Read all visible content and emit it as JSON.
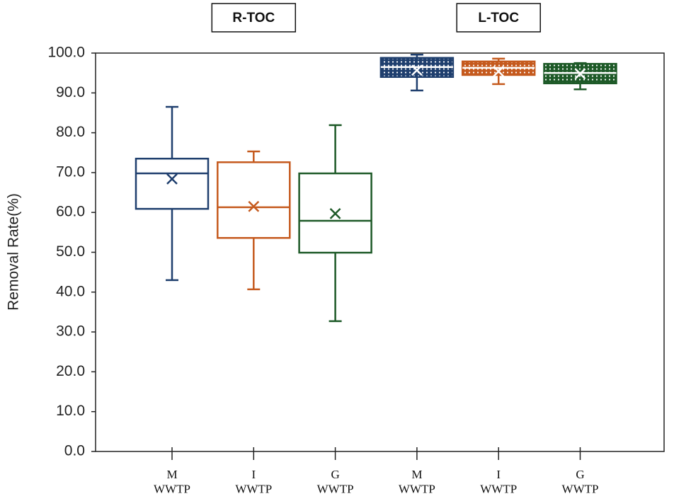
{
  "chart_data": {
    "type": "box",
    "ylabel": "Removal Rate(%)",
    "groups": [
      "R-TOC",
      "L-TOC"
    ],
    "categories": [
      "M\nWWTP",
      "I\nWWTP",
      "G\nWWTP",
      "M\nWWTP",
      "I\nWWTP",
      "G\nWWTP"
    ],
    "boxes": [
      {
        "min": 43.0,
        "q1": 60.9,
        "median": 69.8,
        "q3": 73.5,
        "max": 86.5,
        "mean": 68.4,
        "color": "#1f3f6e",
        "hatched": false
      },
      {
        "min": 40.7,
        "q1": 53.6,
        "median": 61.3,
        "q3": 72.6,
        "max": 75.3,
        "mean": 61.5,
        "color": "#c55a1e",
        "hatched": false
      },
      {
        "min": 32.7,
        "q1": 49.9,
        "median": 57.9,
        "q3": 69.8,
        "max": 81.9,
        "mean": 59.7,
        "color": "#1e5a28",
        "hatched": false
      },
      {
        "min": 90.6,
        "q1": 94.0,
        "median": 96.5,
        "q3": 98.8,
        "max": 99.6,
        "mean": 95.7,
        "color": "#1f3f6e",
        "hatched": true
      },
      {
        "min": 92.2,
        "q1": 94.5,
        "median": 96.3,
        "q3": 97.9,
        "max": 98.6,
        "mean": 95.4,
        "color": "#c55a1e",
        "hatched": true
      },
      {
        "min": 90.9,
        "q1": 92.4,
        "median": 95.0,
        "q3": 97.3,
        "max": 97.5,
        "mean": 94.8,
        "color": "#1e5a28",
        "hatched": true
      }
    ],
    "ylim": [
      0,
      100
    ],
    "yticks": [
      {
        "value": 0,
        "label": "0.0"
      },
      {
        "value": 10,
        "label": "10.0"
      },
      {
        "value": 20,
        "label": "20.0"
      },
      {
        "value": 30,
        "label": "30.0"
      },
      {
        "value": 40,
        "label": "40.0"
      },
      {
        "value": 50,
        "label": "50.0"
      },
      {
        "value": 60,
        "label": "60.0"
      },
      {
        "value": 70,
        "label": "70.0"
      },
      {
        "value": 80,
        "label": "80.0"
      },
      {
        "value": 90,
        "label": "90.0"
      },
      {
        "value": 100,
        "label": "100.0"
      }
    ]
  }
}
